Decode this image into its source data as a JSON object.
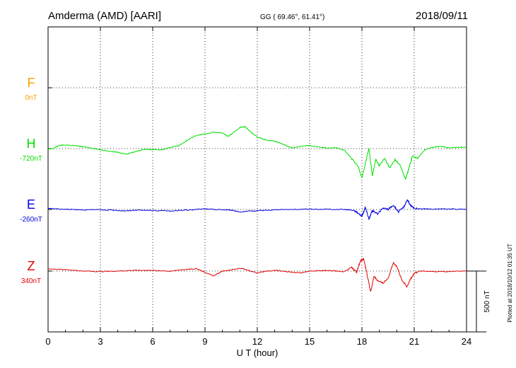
{
  "header": {
    "station": "Amderma (AMD)  [AARI]",
    "coords": "GG ( 69.46°,  61.41°)",
    "date": "2018/09/11"
  },
  "footer": {
    "plotted": "Plotted at 2018/10/12 01:35 UT"
  },
  "chart_data": {
    "type": "line",
    "xlabel": "U T (hour)",
    "xlim": [
      0,
      24
    ],
    "xticks": [
      0,
      3,
      6,
      9,
      12,
      15,
      18,
      21,
      24
    ],
    "grid": true,
    "scale_bar": {
      "label": "500 nT",
      "value_nT": 500
    },
    "series": [
      {
        "name": "F",
        "baseline_label": "0nT",
        "color": "#f5a300",
        "points": []
      },
      {
        "name": "H",
        "baseline_label": "-720nT",
        "color": "#00e000",
        "points": [
          [
            0,
            -5
          ],
          [
            0.3,
            0
          ],
          [
            0.6,
            25
          ],
          [
            1,
            30
          ],
          [
            1.5,
            25
          ],
          [
            2,
            15
          ],
          [
            2.5,
            5
          ],
          [
            3,
            -10
          ],
          [
            3.5,
            -20
          ],
          [
            4,
            -30
          ],
          [
            4.5,
            -45
          ],
          [
            5,
            -25
          ],
          [
            5.5,
            -5
          ],
          [
            6,
            -8
          ],
          [
            6.5,
            -10
          ],
          [
            7,
            10
          ],
          [
            7.5,
            25
          ],
          [
            8,
            70
          ],
          [
            8.5,
            110
          ],
          [
            9,
            120
          ],
          [
            9.5,
            135
          ],
          [
            10,
            130
          ],
          [
            10.3,
            100
          ],
          [
            10.6,
            125
          ],
          [
            11,
            175
          ],
          [
            11.3,
            180
          ],
          [
            11.6,
            140
          ],
          [
            12,
            95
          ],
          [
            12.5,
            70
          ],
          [
            13,
            60
          ],
          [
            13.5,
            35
          ],
          [
            14,
            5
          ],
          [
            14.5,
            20
          ],
          [
            15,
            25
          ],
          [
            15.5,
            15
          ],
          [
            16,
            5
          ],
          [
            16.5,
            10
          ],
          [
            17,
            -15
          ],
          [
            17.4,
            -80
          ],
          [
            17.8,
            -150
          ],
          [
            18,
            -240
          ],
          [
            18.2,
            -120
          ],
          [
            18.4,
            0
          ],
          [
            18.6,
            -220
          ],
          [
            18.8,
            -90
          ],
          [
            19,
            -140
          ],
          [
            19.3,
            -80
          ],
          [
            19.6,
            -160
          ],
          [
            19.9,
            -90
          ],
          [
            20.2,
            -140
          ],
          [
            20.5,
            -250
          ],
          [
            20.7,
            -160
          ],
          [
            20.9,
            -60
          ],
          [
            21.2,
            -80
          ],
          [
            21.6,
            -10
          ],
          [
            22,
            10
          ],
          [
            22.5,
            20
          ],
          [
            23,
            5
          ],
          [
            23.5,
            10
          ],
          [
            24,
            15
          ]
        ]
      },
      {
        "name": "E",
        "baseline_label": "-260nT",
        "color": "#0000e0",
        "points": [
          [
            0,
            10
          ],
          [
            0.5,
            5
          ],
          [
            1,
            2
          ],
          [
            1.5,
            0
          ],
          [
            2,
            -2
          ],
          [
            3,
            -3
          ],
          [
            4,
            -8
          ],
          [
            4.5,
            -12
          ],
          [
            5,
            -5
          ],
          [
            6,
            -8
          ],
          [
            7,
            -12
          ],
          [
            8,
            -5
          ],
          [
            9,
            5
          ],
          [
            9.5,
            0
          ],
          [
            10,
            -2
          ],
          [
            10.5,
            -5
          ],
          [
            11,
            -20
          ],
          [
            11.5,
            -15
          ],
          [
            12,
            -10
          ],
          [
            13,
            -3
          ],
          [
            14,
            0
          ],
          [
            15,
            2
          ],
          [
            16,
            2
          ],
          [
            17,
            0
          ],
          [
            17.5,
            -5
          ],
          [
            17.8,
            -30
          ],
          [
            18,
            -55
          ],
          [
            18.2,
            20
          ],
          [
            18.4,
            -80
          ],
          [
            18.6,
            -10
          ],
          [
            18.9,
            -35
          ],
          [
            19.2,
            10
          ],
          [
            19.5,
            0
          ],
          [
            19.8,
            35
          ],
          [
            20.1,
            -20
          ],
          [
            20.4,
            20
          ],
          [
            20.6,
            80
          ],
          [
            20.8,
            30
          ],
          [
            21,
            10
          ],
          [
            21.5,
            5
          ],
          [
            22,
            3
          ],
          [
            23,
            5
          ],
          [
            24,
            0
          ]
        ]
      },
      {
        "name": "Z",
        "baseline_label": "340nT",
        "color": "#e00000",
        "points": [
          [
            0,
            20
          ],
          [
            0.5,
            15
          ],
          [
            1,
            10
          ],
          [
            2,
            0
          ],
          [
            3,
            -5
          ],
          [
            4,
            0
          ],
          [
            5,
            5
          ],
          [
            6,
            5
          ],
          [
            7,
            0
          ],
          [
            8,
            15
          ],
          [
            8.5,
            20
          ],
          [
            9,
            -10
          ],
          [
            9.5,
            -40
          ],
          [
            10,
            0
          ],
          [
            10.5,
            10
          ],
          [
            11,
            25
          ],
          [
            11.5,
            5
          ],
          [
            12,
            -15
          ],
          [
            12.5,
            0
          ],
          [
            13,
            5
          ],
          [
            13.5,
            0
          ],
          [
            14,
            -10
          ],
          [
            14.5,
            -15
          ],
          [
            15,
            0
          ],
          [
            16,
            5
          ],
          [
            16.5,
            0
          ],
          [
            17,
            -5
          ],
          [
            17.4,
            30
          ],
          [
            17.7,
            -10
          ],
          [
            17.9,
            80
          ],
          [
            18.1,
            100
          ],
          [
            18.3,
            -30
          ],
          [
            18.5,
            -170
          ],
          [
            18.7,
            -40
          ],
          [
            18.9,
            -80
          ],
          [
            19.2,
            -100
          ],
          [
            19.5,
            -60
          ],
          [
            19.8,
            70
          ],
          [
            20,
            40
          ],
          [
            20.3,
            -80
          ],
          [
            20.6,
            -130
          ],
          [
            20.8,
            -60
          ],
          [
            21,
            -20
          ],
          [
            21.3,
            0
          ],
          [
            22,
            -5
          ],
          [
            23,
            -3
          ],
          [
            24,
            0
          ]
        ]
      }
    ]
  }
}
